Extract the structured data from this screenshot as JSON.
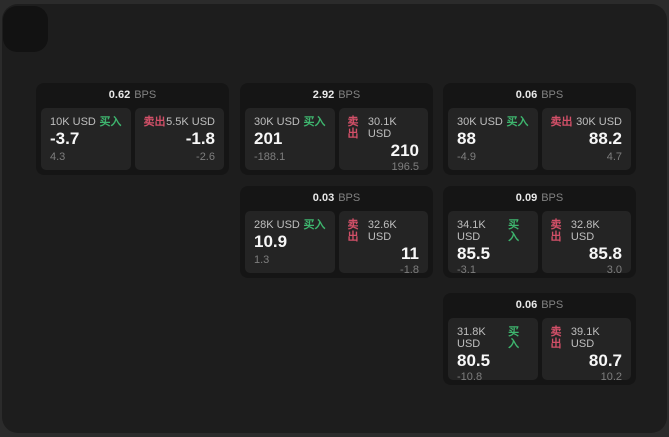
{
  "labels": {
    "bps_unit": "BPS",
    "buy": "买入",
    "sell": "卖出"
  },
  "colors": {
    "buy_green": "#3eb56e",
    "sell_red": "#d25068",
    "page_bg": "#1d1d1d",
    "card_bg": "#151515",
    "panel_bg": "#242424"
  },
  "cards": [
    {
      "bps": "0.62",
      "buy": {
        "amount": "10K USD",
        "price": "-3.7",
        "delta": "4.3"
      },
      "sell": {
        "amount": "5.5K USD",
        "price": "-1.8",
        "delta": "-2.6"
      }
    },
    {
      "bps": "2.92",
      "buy": {
        "amount": "30K USD",
        "price": "201",
        "delta": "-188.1"
      },
      "sell": {
        "amount": "30.1K USD",
        "price": "210",
        "delta": "196.5"
      }
    },
    {
      "bps": "0.06",
      "buy": {
        "amount": "30K USD",
        "price": "88",
        "delta": "-4.9"
      },
      "sell": {
        "amount": "30K USD",
        "price": "88.2",
        "delta": "4.7"
      }
    },
    {
      "bps": "0.03",
      "buy": {
        "amount": "28K USD",
        "price": "10.9",
        "delta": "1.3"
      },
      "sell": {
        "amount": "32.6K USD",
        "price": "11",
        "delta": "-1.8"
      }
    },
    {
      "bps": "0.09",
      "buy": {
        "amount": "34.1K USD",
        "price": "85.5",
        "delta": "-3.1"
      },
      "sell": {
        "amount": "32.8K USD",
        "price": "85.8",
        "delta": "3.0"
      }
    },
    {
      "bps": "0.06",
      "buy": {
        "amount": "31.8K USD",
        "price": "80.5",
        "delta": "-10.8"
      },
      "sell": {
        "amount": "39.1K USD",
        "price": "80.7",
        "delta": "10.2"
      }
    }
  ]
}
